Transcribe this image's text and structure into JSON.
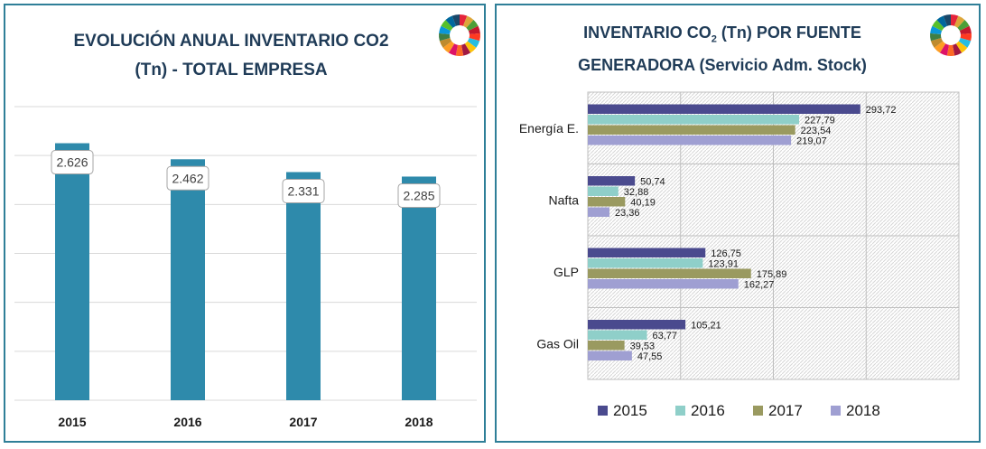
{
  "left_panel": {
    "title_line1": "EVOLUCIÓN ANUAL INVENTARIO CO2",
    "title_line2": "(Tn) - TOTAL EMPRESA",
    "logo": "sdg-wheel-icon"
  },
  "right_panel": {
    "title_line1a": "INVENTARIO CO",
    "title_sub": "2",
    "title_line1b": " (Tn) POR FUENTE",
    "title_line2": "GENERADORA (Servicio Adm. Stock)",
    "logo": "sdg-wheel-icon"
  },
  "chart_data": [
    {
      "type": "bar",
      "title": "EVOLUCIÓN ANUAL INVENTARIO CO2 (Tn) - TOTAL EMPRESA",
      "categories": [
        "2015",
        "2016",
        "2017",
        "2018"
      ],
      "values": [
        2626,
        2462,
        2331,
        2285
      ],
      "data_labels": [
        "2.626",
        "2.462",
        "2.331",
        "2.285"
      ],
      "ylim": [
        0,
        3000
      ],
      "grid": true,
      "bar_color": "#2e8aab"
    },
    {
      "type": "bar",
      "orientation": "horizontal",
      "title": "INVENTARIO CO2 (Tn) POR FUENTE GENERADORA (Servicio Adm. Stock)",
      "categories": [
        "Energía E.",
        "Nafta",
        "GLP",
        "Gas Oil"
      ],
      "series": [
        {
          "name": "2015",
          "color": "#4a4a8e",
          "values": [
            293.72,
            50.74,
            126.75,
            105.21
          ],
          "labels": [
            "293,72",
            "50,74",
            "126,75",
            "105,21"
          ]
        },
        {
          "name": "2016",
          "color": "#8fcfc9",
          "values": [
            227.79,
            32.88,
            123.91,
            63.77
          ],
          "labels": [
            "227,79",
            "32,88",
            "123,91",
            "63,77"
          ]
        },
        {
          "name": "2017",
          "color": "#9a9a60",
          "values": [
            223.54,
            40.19,
            175.89,
            39.53
          ],
          "labels": [
            "223,54",
            "40,19",
            "175,89",
            "39,53"
          ]
        },
        {
          "name": "2018",
          "color": "#9f9fd2",
          "values": [
            219.07,
            23.36,
            162.27,
            47.55
          ],
          "labels": [
            "219,07",
            "23,36",
            "162,27",
            "47,55"
          ]
        }
      ],
      "xlim": [
        0,
        400
      ],
      "grid": true,
      "legend": "bottom"
    }
  ]
}
